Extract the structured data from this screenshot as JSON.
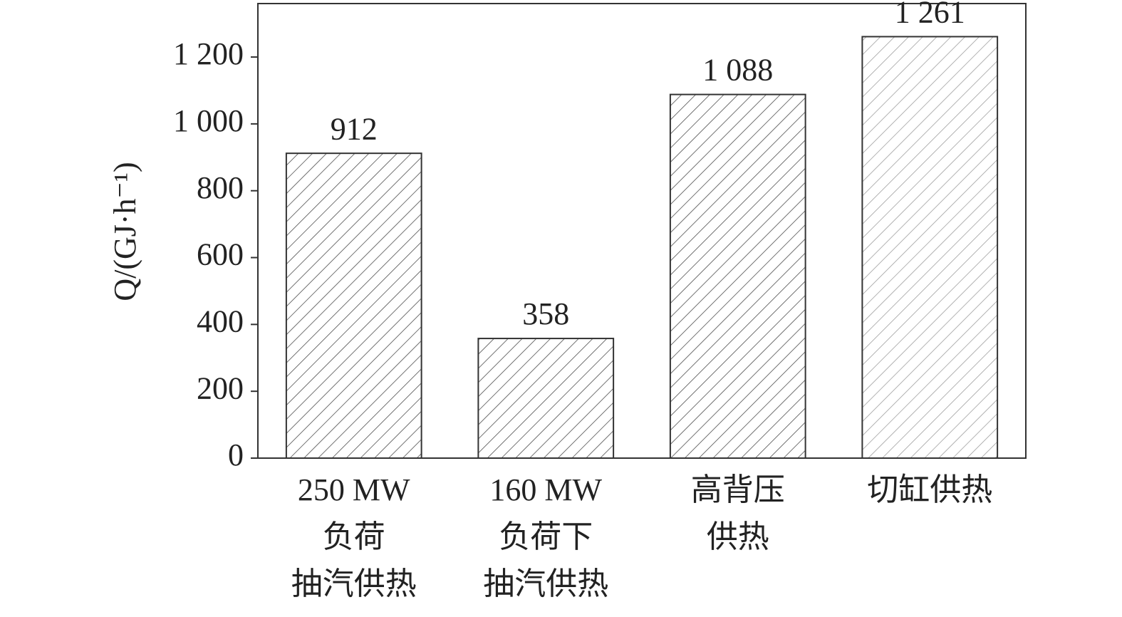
{
  "chart_data": {
    "type": "bar",
    "ylabel": "Q/(GJ·h⁻¹)",
    "categories": [
      [
        "250 MW",
        "负荷",
        "抽汽供热"
      ],
      [
        "160 MW",
        "负荷下",
        "抽汽供热"
      ],
      [
        "高背压",
        "供热"
      ],
      [
        "切缸供热"
      ]
    ],
    "values": [
      912,
      358,
      1088,
      1261
    ],
    "value_labels": [
      "912",
      "358",
      "1 088",
      "1 261"
    ],
    "colors": [
      "#444444",
      "#444444",
      "#444444",
      "#999999"
    ],
    "ylim": [
      0,
      1360
    ],
    "yticks": [
      0,
      200,
      400,
      600,
      800,
      {
        "value": 1000,
        "label": "1 000"
      },
      {
        "value": 1200,
        "label": "1 200"
      }
    ]
  }
}
